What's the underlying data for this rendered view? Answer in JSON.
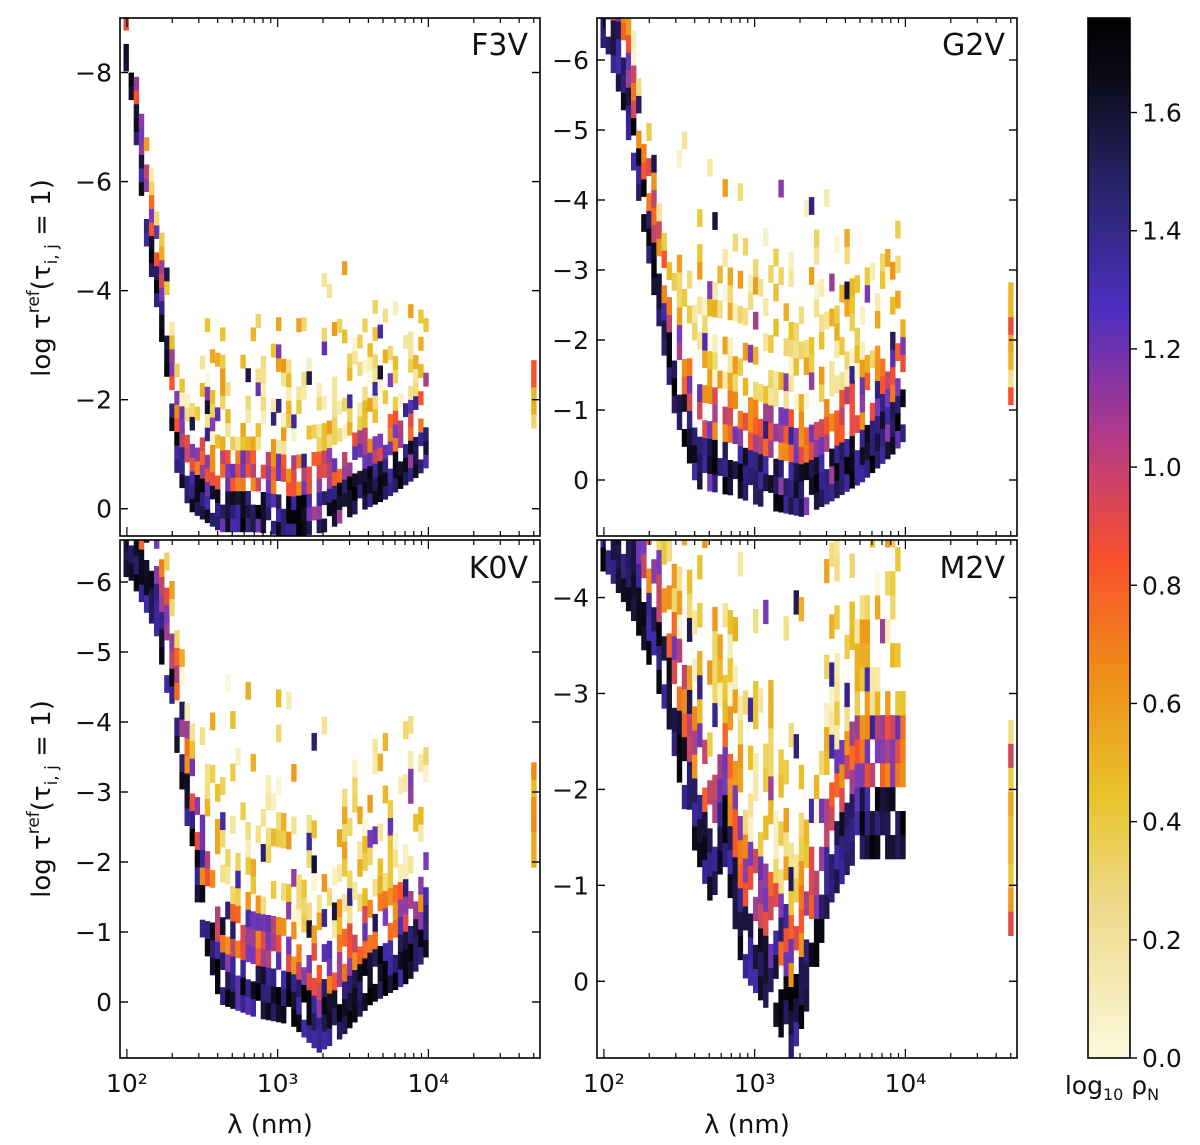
{
  "figure": {
    "x_label": "λ (nm)",
    "y_label": "log τ^ref(τ_i,j = 1)",
    "colorbar": {
      "label": "log₁₀ ρ_N",
      "range": [
        0.0,
        1.76
      ],
      "ticks": [
        0.0,
        0.2,
        0.4,
        0.6,
        0.8,
        1.0,
        1.2,
        1.4,
        1.6
      ],
      "colormap": "CMRmap_r",
      "colormap_stops": [
        "#fbf8dc",
        "#e8c42c",
        "#ef8c18",
        "#f9502d",
        "#7a3ab7",
        "#3e2aa5",
        "#131029",
        "#000000"
      ]
    }
  },
  "chart_data": [
    {
      "type": "heatmap",
      "title": "F3V",
      "xscale": "log",
      "xlim": [
        90,
        55000
      ],
      "x_ticks": [
        100,
        1000,
        10000
      ],
      "x_tick_labels": [
        "10²",
        "10³",
        "10⁴"
      ],
      "ylim": [
        0.5,
        -9.0
      ],
      "y_ticks": [
        0,
        -2,
        -4,
        -6,
        -8
      ],
      "y_tick_labels": [
        "0",
        "−2",
        "−4",
        "−6",
        "−8"
      ],
      "description_of_distribution": "Points trace a curved valley: near log τ ≈ -8 at 100 nm falling to about 0 beyond 300 nm, rising to about -1 near 10^4 nm; isolated column near 5×10^4 nm between -2.5 and -1.5.",
      "dense_core": [
        [
          100,
          -8.0
        ],
        [
          110,
          -7.0
        ],
        [
          130,
          -5.0
        ],
        [
          150,
          -4.0
        ],
        [
          180,
          -2.5
        ],
        [
          200,
          -1.0
        ],
        [
          250,
          -0.2
        ],
        [
          400,
          0.2
        ],
        [
          700,
          0.2
        ],
        [
          1200,
          0.3
        ],
        [
          2000,
          0.2
        ],
        [
          3000,
          -0.1
        ],
        [
          5000,
          -0.4
        ],
        [
          8000,
          -0.8
        ],
        [
          9500,
          -1.0
        ]
      ],
      "isolated_column": {
        "x": 50000,
        "y_range": [
          -2.6,
          -1.4
        ]
      }
    },
    {
      "type": "heatmap",
      "title": "G2V",
      "xscale": "log",
      "xlim": [
        90,
        55000
      ],
      "x_ticks": [
        100,
        1000,
        10000
      ],
      "x_tick_labels": [
        "10²",
        "10³",
        "10⁴"
      ],
      "ylim": [
        0.8,
        -6.6
      ],
      "y_ticks": [
        0,
        -1,
        -2,
        -3,
        -4,
        -5,
        -6
      ],
      "y_tick_labels": [
        "0",
        "−1",
        "−2",
        "−3",
        "−4",
        "−5",
        "−6"
      ],
      "description_of_distribution": "Valley from about -6.5 near 100 nm down to about 0.3 around 1000-2000 nm, rising to about -1 near 10^4 nm; isolated column near 5×10^4 nm between -2.7 and -1.0.",
      "dense_core": [
        [
          100,
          -6.4
        ],
        [
          130,
          -5.5
        ],
        [
          170,
          -4.0
        ],
        [
          220,
          -2.5
        ],
        [
          280,
          -1.2
        ],
        [
          400,
          -0.1
        ],
        [
          700,
          0.0
        ],
        [
          1200,
          0.2
        ],
        [
          2000,
          0.3
        ],
        [
          3000,
          0.1
        ],
        [
          5000,
          -0.2
        ],
        [
          8000,
          -0.6
        ],
        [
          9500,
          -0.8
        ]
      ],
      "isolated_column": {
        "x": 50000,
        "y_range": [
          -2.7,
          -1.0
        ]
      }
    },
    {
      "type": "heatmap",
      "title": "K0V",
      "xscale": "log",
      "xlim": [
        90,
        55000
      ],
      "x_ticks": [
        100,
        1000,
        10000
      ],
      "x_tick_labels": [
        "10²",
        "10³",
        "10⁴"
      ],
      "ylim": [
        0.8,
        -6.6
      ],
      "y_ticks": [
        0,
        -1,
        -2,
        -3,
        -4,
        -5,
        -6
      ],
      "y_tick_labels": [
        "0",
        "−1",
        "−2",
        "−3",
        "−4",
        "−5",
        "−6"
      ],
      "description_of_distribution": "Valley from about -6.4 near 100 nm down to about 0.6 near 1500-2000 nm, rising to about -1 near 10^4 nm; isolated column near 5×10^4 nm between -3.3 and -1.8.",
      "dense_core": [
        [
          100,
          -6.3
        ],
        [
          150,
          -5.5
        ],
        [
          200,
          -4.0
        ],
        [
          250,
          -2.5
        ],
        [
          300,
          -1.2
        ],
        [
          400,
          -0.2
        ],
        [
          700,
          0.0
        ],
        [
          1200,
          0.1
        ],
        [
          1800,
          0.5
        ],
        [
          2500,
          0.3
        ],
        [
          4000,
          -0.2
        ],
        [
          7000,
          -0.5
        ],
        [
          9500,
          -0.9
        ]
      ],
      "isolated_column": {
        "x": 50000,
        "y_range": [
          -3.3,
          -1.8
        ]
      }
    },
    {
      "type": "heatmap",
      "title": "M2V",
      "xscale": "log",
      "xlim": [
        90,
        55000
      ],
      "x_ticks": [
        100,
        1000,
        10000
      ],
      "x_tick_labels": [
        "10²",
        "10³",
        "10⁴"
      ],
      "ylim": [
        0.8,
        -4.6
      ],
      "y_ticks": [
        0,
        -1,
        -2,
        -3,
        -4
      ],
      "y_tick_labels": [
        "0",
        "−1",
        "−2",
        "−3",
        "−4"
      ],
      "description_of_distribution": "W-shaped distribution: about -4.5 at 100 nm, dropping to about 0.6 near 1500-2000 nm, secondary dip near 600 nm, broad band between -3 and -0.5 from 3000 to 10^4 nm; isolated column near 5×10^4 nm between -2.6 and -0.6.",
      "dense_core": [
        [
          100,
          -4.5
        ],
        [
          150,
          -4.0
        ],
        [
          250,
          -3.0
        ],
        [
          350,
          -1.8
        ],
        [
          500,
          -1.0
        ],
        [
          600,
          -1.5
        ],
        [
          800,
          -0.3
        ],
        [
          1200,
          0.1
        ],
        [
          1700,
          0.6
        ],
        [
          2200,
          0.0
        ],
        [
          3000,
          -1.0
        ],
        [
          4500,
          -1.5
        ],
        [
          7000,
          -1.5
        ],
        [
          9500,
          -1.5
        ]
      ],
      "isolated_column": {
        "x": 50000,
        "y_range": [
          -2.6,
          -0.6
        ]
      }
    }
  ]
}
